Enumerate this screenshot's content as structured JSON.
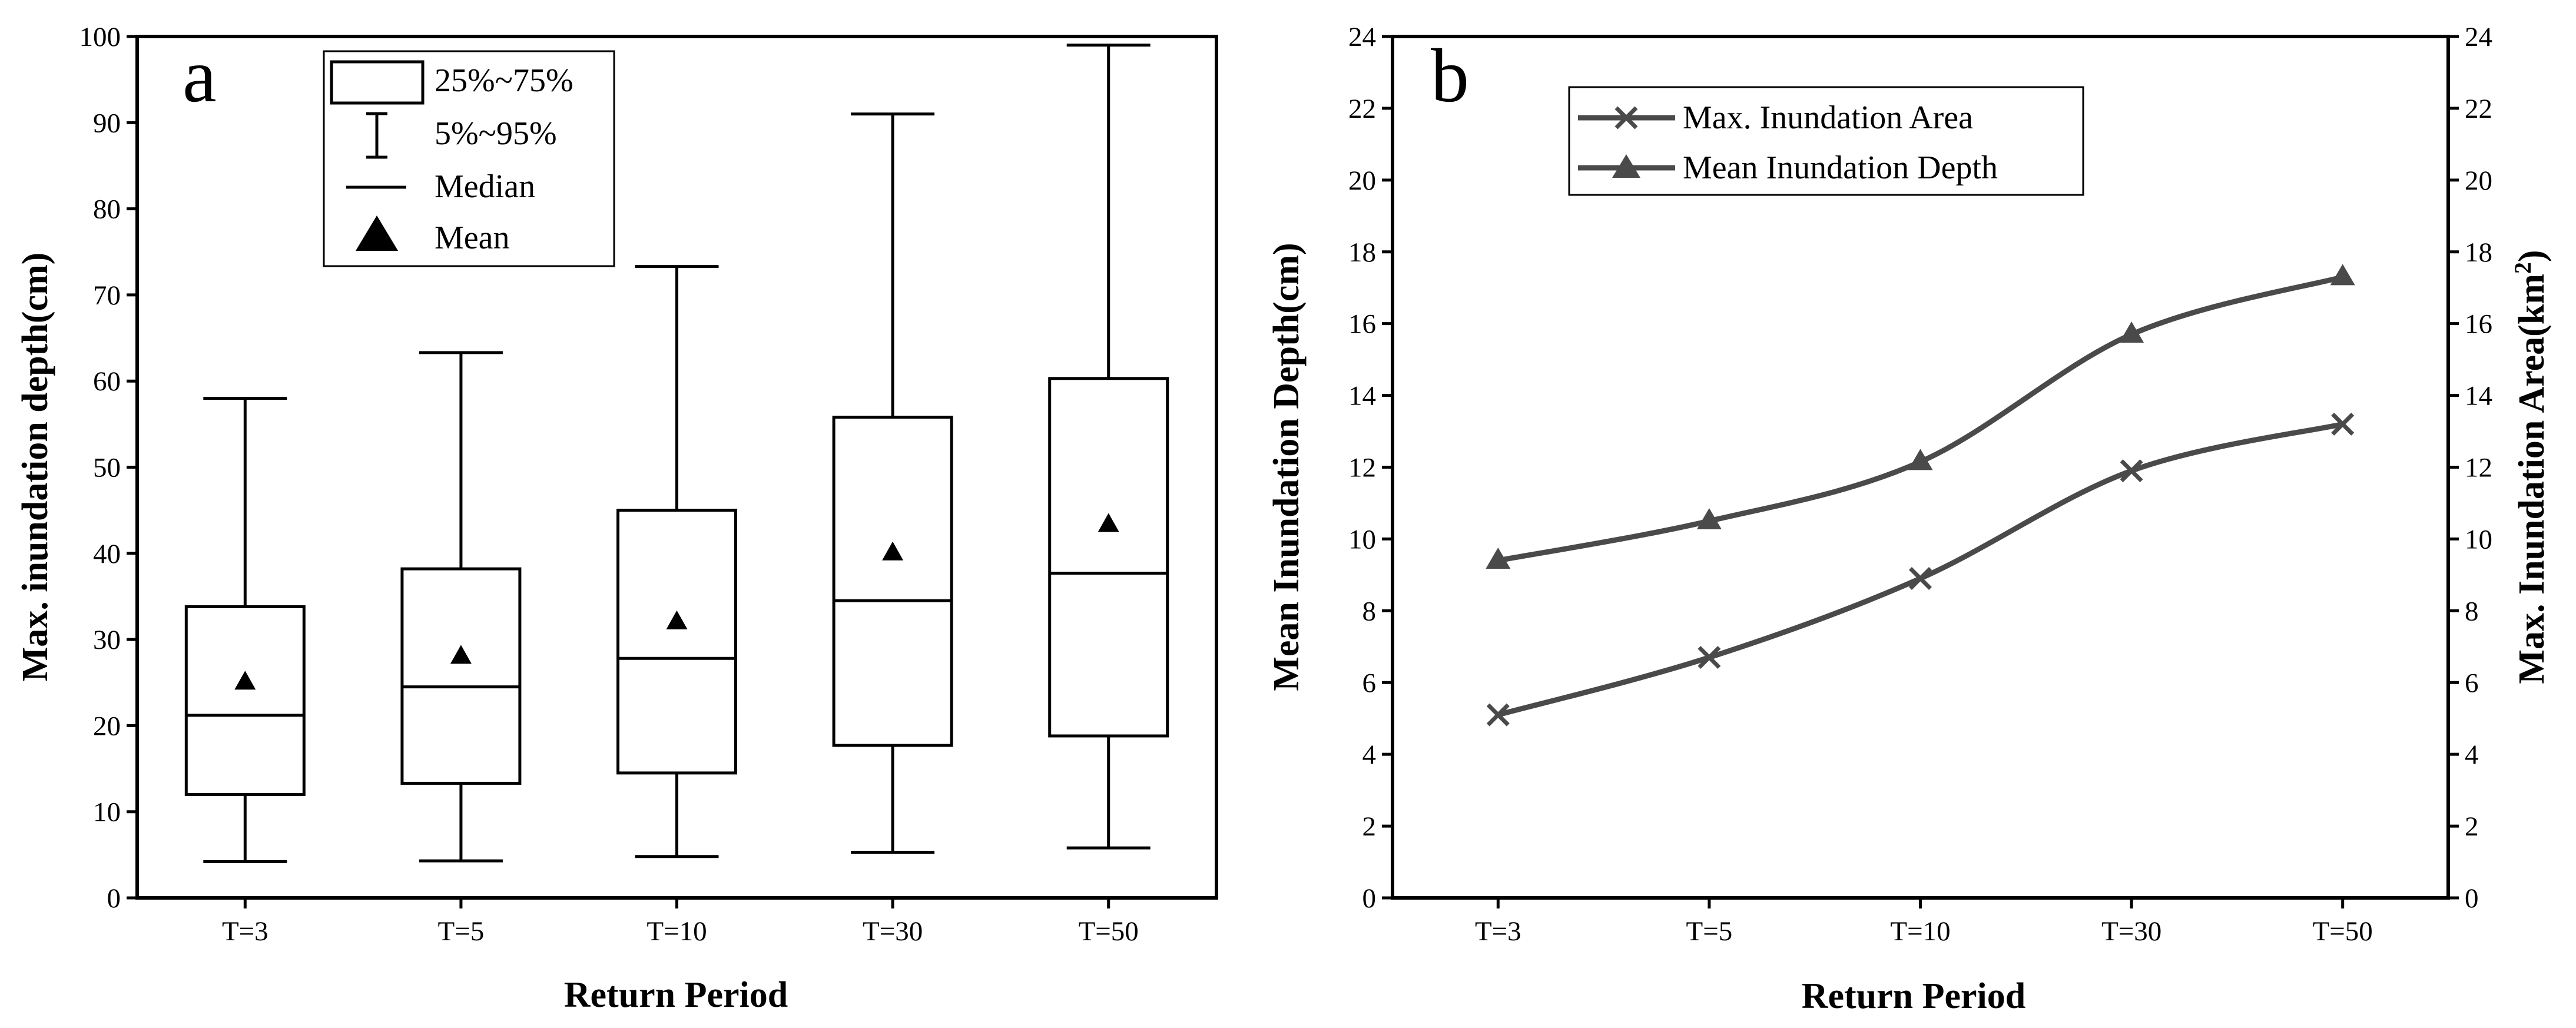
{
  "chart_data": [
    {
      "panel": "a",
      "type": "box",
      "categories": [
        "T=3",
        "T=5",
        "T=10",
        "T=30",
        "T=50"
      ],
      "boxes": [
        {
          "p5": 4.2,
          "q1": 12.0,
          "median": 21.2,
          "q3": 33.8,
          "p95": 58.0,
          "mean": 25.0
        },
        {
          "p5": 4.3,
          "q1": 13.3,
          "median": 24.5,
          "q3": 38.2,
          "p95": 63.3,
          "mean": 28.0
        },
        {
          "p5": 4.8,
          "q1": 14.5,
          "median": 27.8,
          "q3": 45.0,
          "p95": 73.3,
          "mean": 32.0
        },
        {
          "p5": 5.3,
          "q1": 17.7,
          "median": 34.5,
          "q3": 55.8,
          "p95": 91.0,
          "mean": 40.0
        },
        {
          "p5": 5.8,
          "q1": 18.8,
          "median": 37.7,
          "q3": 60.3,
          "p95": 99.0,
          "mean": 43.3
        }
      ],
      "xlabel": "Return Period",
      "ylabel": "Max. inundation depth(cm)",
      "ylim": [
        0,
        100
      ],
      "yticks": [
        "0",
        "10",
        "20",
        "30",
        "40",
        "50",
        "60",
        "70",
        "80",
        "90",
        "100"
      ],
      "legend": [
        "25%~75%",
        "5%~95%",
        "Median",
        "Mean"
      ],
      "legend_position": "top-center"
    },
    {
      "panel": "b",
      "type": "line",
      "categories": [
        "T=3",
        "T=5",
        "T=10",
        "T=30",
        "T=50"
      ],
      "series": [
        {
          "name": "Max. Inundation Area",
          "axis": "right",
          "marker": "x",
          "values": [
            5.1,
            6.7,
            8.9,
            11.9,
            13.2
          ]
        },
        {
          "name": "Mean Inundation Depth",
          "axis": "left",
          "marker": "triangle",
          "values": [
            9.4,
            10.5,
            12.15,
            15.7,
            17.3
          ]
        }
      ],
      "xlabel": "Return Period",
      "ylabel_left": "Mean Inundation Depth(cm)",
      "ylabel_right": "Max. Inundation Area(km²)",
      "ylim": [
        0,
        24
      ],
      "yticks": [
        "0",
        "2",
        "4",
        "6",
        "8",
        "10",
        "12",
        "14",
        "16",
        "18",
        "20",
        "22",
        "24"
      ],
      "legend_position": "top-left"
    }
  ],
  "colors": {
    "box": "#000000",
    "line": "#4a4a4a"
  },
  "labels": {
    "a_ylabel": "Max. inundation depth(cm)",
    "a_xlabel": "Return Period",
    "b_ylabel_left": "Mean Inundation Depth(cm)",
    "b_ylabel_right_main": "Max. Inundation Area(km",
    "b_ylabel_right_sup": "2",
    "b_ylabel_right_end": ")",
    "b_xlabel": "Return Period",
    "legend_a": [
      "25%~75%",
      "5%~95%",
      "Median",
      "Mean"
    ],
    "legend_b": [
      "Max. Inundation Area",
      "Mean Inundation Depth"
    ]
  },
  "panel_labels": {
    "a": "a",
    "b": "b"
  }
}
